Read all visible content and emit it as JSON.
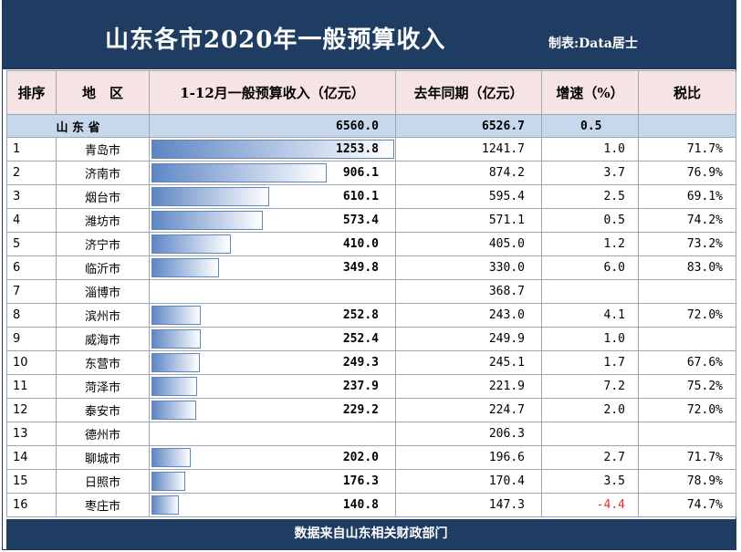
{
  "header": {
    "title": "山东各市2020年一般预算收入",
    "credit": "制表:Data居士"
  },
  "columns": [
    "排序",
    "地　区",
    "1-12月一般预算收入（亿元）",
    "去年同期（亿元）",
    "增速（%）",
    "税比"
  ],
  "province": {
    "rank": "山 东 省",
    "current": "6560.0",
    "last": "6526.7",
    "growth": "0.5",
    "tax": ""
  },
  "colors": {
    "title_bar": "#1f3d63",
    "bar": "#5e86c4",
    "negative": "#d9362c",
    "header_bg": "#f6e3e3",
    "province_bg": "#c8d8ec"
  },
  "chart_data": {
    "type": "table",
    "title": "山东各市2020年一般预算收入",
    "bar_max": 1253.8,
    "rows": [
      {
        "rank": "1",
        "city": "青岛市",
        "current": "1253.8",
        "last": "1241.7",
        "growth": "1.0",
        "tax": "71.7%",
        "bar": 1253.8
      },
      {
        "rank": "2",
        "city": "济南市",
        "current": "906.1",
        "last": "874.2",
        "growth": "3.7",
        "tax": "76.9%",
        "bar": 906.1
      },
      {
        "rank": "3",
        "city": "烟台市",
        "current": "610.1",
        "last": "595.4",
        "growth": "2.5",
        "tax": "69.1%",
        "bar": 610.1
      },
      {
        "rank": "4",
        "city": "潍坊市",
        "current": "573.4",
        "last": "571.1",
        "growth": "0.5",
        "tax": "74.2%",
        "bar": 573.4
      },
      {
        "rank": "5",
        "city": "济宁市",
        "current": "410.0",
        "last": "405.0",
        "growth": "1.2",
        "tax": "73.2%",
        "bar": 410.0
      },
      {
        "rank": "6",
        "city": "临沂市",
        "current": "349.8",
        "last": "330.0",
        "growth": "6.0",
        "tax": "83.0%",
        "bar": 349.8
      },
      {
        "rank": "7",
        "city": "淄博市",
        "current": "",
        "last": "368.7",
        "growth": "",
        "tax": "",
        "bar": 0
      },
      {
        "rank": "8",
        "city": "滨州市",
        "current": "252.8",
        "last": "243.0",
        "growth": "4.1",
        "tax": "72.0%",
        "bar": 252.8
      },
      {
        "rank": "9",
        "city": "威海市",
        "current": "252.4",
        "last": "249.9",
        "growth": "1.0",
        "tax": "",
        "bar": 252.4
      },
      {
        "rank": "10",
        "city": "东营市",
        "current": "249.3",
        "last": "245.1",
        "growth": "1.7",
        "tax": "67.6%",
        "bar": 249.3
      },
      {
        "rank": "11",
        "city": "菏泽市",
        "current": "237.9",
        "last": "221.9",
        "growth": "7.2",
        "tax": "75.2%",
        "bar": 237.9
      },
      {
        "rank": "12",
        "city": "泰安市",
        "current": "229.2",
        "last": "224.7",
        "growth": "2.0",
        "tax": "72.0%",
        "bar": 229.2
      },
      {
        "rank": "13",
        "city": "德州市",
        "current": "",
        "last": "206.3",
        "growth": "",
        "tax": "",
        "bar": 0
      },
      {
        "rank": "14",
        "city": "聊城市",
        "current": "202.0",
        "last": "196.6",
        "growth": "2.7",
        "tax": "71.7%",
        "bar": 202.0
      },
      {
        "rank": "15",
        "city": "日照市",
        "current": "176.3",
        "last": "170.4",
        "growth": "3.5",
        "tax": "78.9%",
        "bar": 176.3
      },
      {
        "rank": "16",
        "city": "枣庄市",
        "current": "140.8",
        "last": "147.3",
        "growth": "-4.4",
        "tax": "74.7%",
        "bar": 140.8
      }
    ]
  },
  "footer": {
    "text": "数据来自山东相关财政部门"
  }
}
